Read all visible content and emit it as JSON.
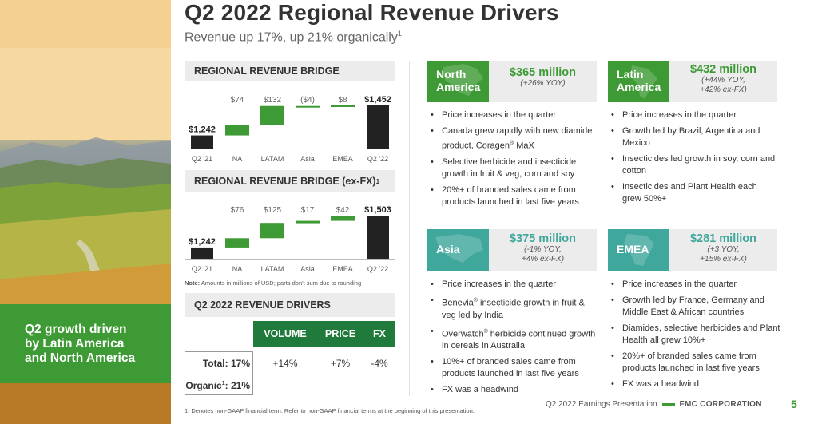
{
  "title": "Q2 2022 Regional Revenue Drivers",
  "subtitle": {
    "text": "Revenue up 17%, up 21% organically",
    "sup": "1"
  },
  "left_panel": {
    "callout": "Q2 growth driven\nby Latin America\nand North America"
  },
  "bridge": {
    "heading": "REGIONAL REVENUE BRIDGE",
    "chart_data": {
      "type": "bar",
      "categories": [
        "Q2 '21",
        "NA",
        "LATAM",
        "Asia",
        "EMEA",
        "Q2 '22"
      ],
      "values": [
        1242,
        74,
        132,
        -4,
        8,
        1452
      ],
      "labels": [
        "$1,242",
        "$74",
        "$132",
        "($4)",
        "$8",
        "$1,452"
      ],
      "kinds": [
        "total",
        "delta",
        "delta",
        "delta",
        "delta",
        "total"
      ]
    }
  },
  "bridge_fx": {
    "heading": "REGIONAL REVENUE BRIDGE (ex-FX)",
    "heading_sup": "1",
    "chart_data": {
      "type": "bar",
      "categories": [
        "Q2 '21",
        "NA",
        "LATAM",
        "Asia",
        "EMEA",
        "Q2 '22"
      ],
      "values": [
        1242,
        76,
        125,
        17,
        42,
        1503
      ],
      "labels": [
        "$1,242",
        "$76",
        "$125",
        "$17",
        "$42",
        "$1,503"
      ],
      "kinds": [
        "total",
        "delta",
        "delta",
        "delta",
        "delta",
        "total"
      ]
    }
  },
  "note": {
    "label": "Note:",
    "text": " Amounts in millions of USD; parts don't sum due to rounding"
  },
  "drivers": {
    "heading": "Q2 2022 REVENUE DRIVERS",
    "columns": [
      "VOLUME",
      "PRICE",
      "FX"
    ],
    "rows": [
      {
        "label": "Total:",
        "value_label": "17%",
        "values": [
          "+14%",
          "+7%",
          "-4%"
        ]
      },
      {
        "label": "Organic",
        "label_sup": "1",
        "value_label": ": 21%",
        "values": [
          "",
          "",
          ""
        ]
      }
    ]
  },
  "regions": [
    {
      "name": "North\nAmerica",
      "value": "$365 million",
      "detail": "(+26% YOY)",
      "bullets": [
        {
          "text": "Price increases in the quarter"
        },
        {
          "text": "Canada grew rapidly with new diamide product, Coragen",
          "sup": "®",
          "after": " MaX"
        },
        {
          "text": "Selective herbicide and insecticide growth in fruit & veg, corn and soy"
        },
        {
          "text": "20%+ of branded sales came from products launched in last five years"
        }
      ]
    },
    {
      "name": "Latin\nAmerica",
      "value": "$432 million",
      "detail": "(+44% YOY,\n+42% ex-FX)",
      "bullets": [
        {
          "text": "Price increases in the quarter"
        },
        {
          "text": "Growth led by Brazil, Argentina and Mexico"
        },
        {
          "text": "Insecticides led growth in soy, corn and cotton"
        },
        {
          "text": "Insecticides and Plant Health each grew 50%+"
        }
      ]
    },
    {
      "name": "Asia",
      "value": "$375 million",
      "detail": "(-1% YOY,\n+4% ex-FX)",
      "bullets": [
        {
          "text": "Price increases in the quarter"
        },
        {
          "text": "Benevia",
          "sup": "®",
          "after": " insecticide growth in fruit & veg led by India"
        },
        {
          "text": "Overwatch",
          "sup": "®",
          "after": " herbicide continued growth in cereals in Australia"
        },
        {
          "text": "10%+ of branded sales came from products launched in last five years"
        },
        {
          "text": "FX was a headwind"
        }
      ]
    },
    {
      "name": "EMEA",
      "value": "$281 million",
      "detail": "(+3 YOY,\n+15% ex-FX)",
      "bullets": [
        {
          "text": "Price increases in the quarter"
        },
        {
          "text": "Growth led by France, Germany and Middle East & African countries"
        },
        {
          "text": "Diamides, selective herbicides and Plant Health all grew 10%+"
        },
        {
          "text": "20%+ of branded sales came from products launched in last five years"
        },
        {
          "text": "FX was a headwind"
        }
      ]
    }
  ],
  "footer": {
    "footnote": "1.     Denotes non-GAAP financial term. Refer to non-GAAP financial terms at the beginning of this presentation.",
    "presentation": "Q2 2022 Earnings Presentation",
    "company": "FMC CORPORATION",
    "page": "5"
  },
  "colors": {
    "brand_green": "#3e9a35",
    "dark_green": "#1f7a3b",
    "teal": "#3fa79c",
    "bar_dark": "#222222"
  }
}
